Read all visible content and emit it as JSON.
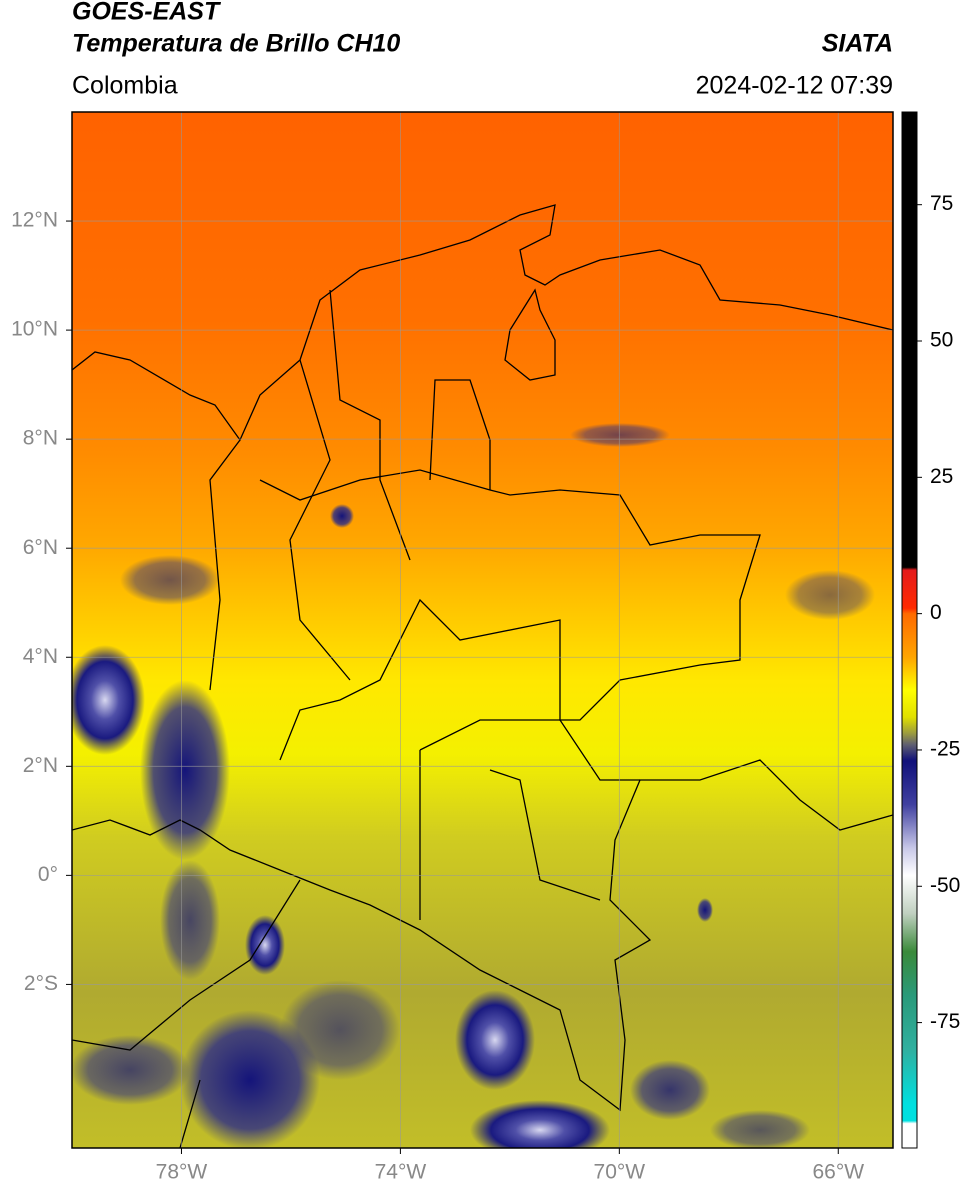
{
  "map": {
    "title": "GOES-EAST",
    "subtitle": "Temperatura de Brillo CH10",
    "source": "SIATA",
    "region": "Colombia",
    "datetime": "2024-02-12 07:39",
    "xlim": [
      -80,
      -65
    ],
    "ylim": [
      -5,
      14
    ],
    "xticks": [
      {
        "value": -78,
        "label": "78°W"
      },
      {
        "value": -74,
        "label": "74°W"
      },
      {
        "value": -70,
        "label": "70°W"
      },
      {
        "value": -66,
        "label": "66°W"
      }
    ],
    "yticks": [
      {
        "value": 12,
        "label": "12°N"
      },
      {
        "value": 10,
        "label": "10°N"
      },
      {
        "value": 8,
        "label": "8°N"
      },
      {
        "value": 6,
        "label": "6°N"
      },
      {
        "value": 4,
        "label": "4°N"
      },
      {
        "value": 2,
        "label": "2°N"
      },
      {
        "value": 0,
        "label": "0°"
      },
      {
        "value": -2,
        "label": "2°S"
      }
    ],
    "grid": true,
    "colorbar": {
      "clim": [
        -98,
        92
      ],
      "ticks": [
        75,
        50,
        25,
        0,
        -25,
        -50,
        -75
      ],
      "stops": [
        {
          "value": 92,
          "color": "#000000"
        },
        {
          "value": 8.5,
          "color": "#000000"
        },
        {
          "value": 8,
          "color": "#e41a1c"
        },
        {
          "value": 1,
          "color": "#ff2a00"
        },
        {
          "value": 0,
          "color": "#ff6a00"
        },
        {
          "value": -8,
          "color": "#ffa500"
        },
        {
          "value": -14,
          "color": "#ffff00"
        },
        {
          "value": -19,
          "color": "#e0e000"
        },
        {
          "value": -22,
          "color": "#9a9a40"
        },
        {
          "value": -24,
          "color": "#606070"
        },
        {
          "value": -27,
          "color": "#10107a"
        },
        {
          "value": -35,
          "color": "#4040a0"
        },
        {
          "value": -43,
          "color": "#c8c8e8"
        },
        {
          "value": -48,
          "color": "#ffffff"
        },
        {
          "value": -55,
          "color": "#c0d0c0"
        },
        {
          "value": -62,
          "color": "#3a8a3a"
        },
        {
          "value": -70,
          "color": "#2a9a7a"
        },
        {
          "value": -80,
          "color": "#30b0a0"
        },
        {
          "value": -90,
          "color": "#00e0e0"
        },
        {
          "value": -93,
          "color": "#00e0e0"
        },
        {
          "value": -93.5,
          "color": "#ffffff"
        },
        {
          "value": -98,
          "color": "#ffffff"
        }
      ]
    }
  }
}
